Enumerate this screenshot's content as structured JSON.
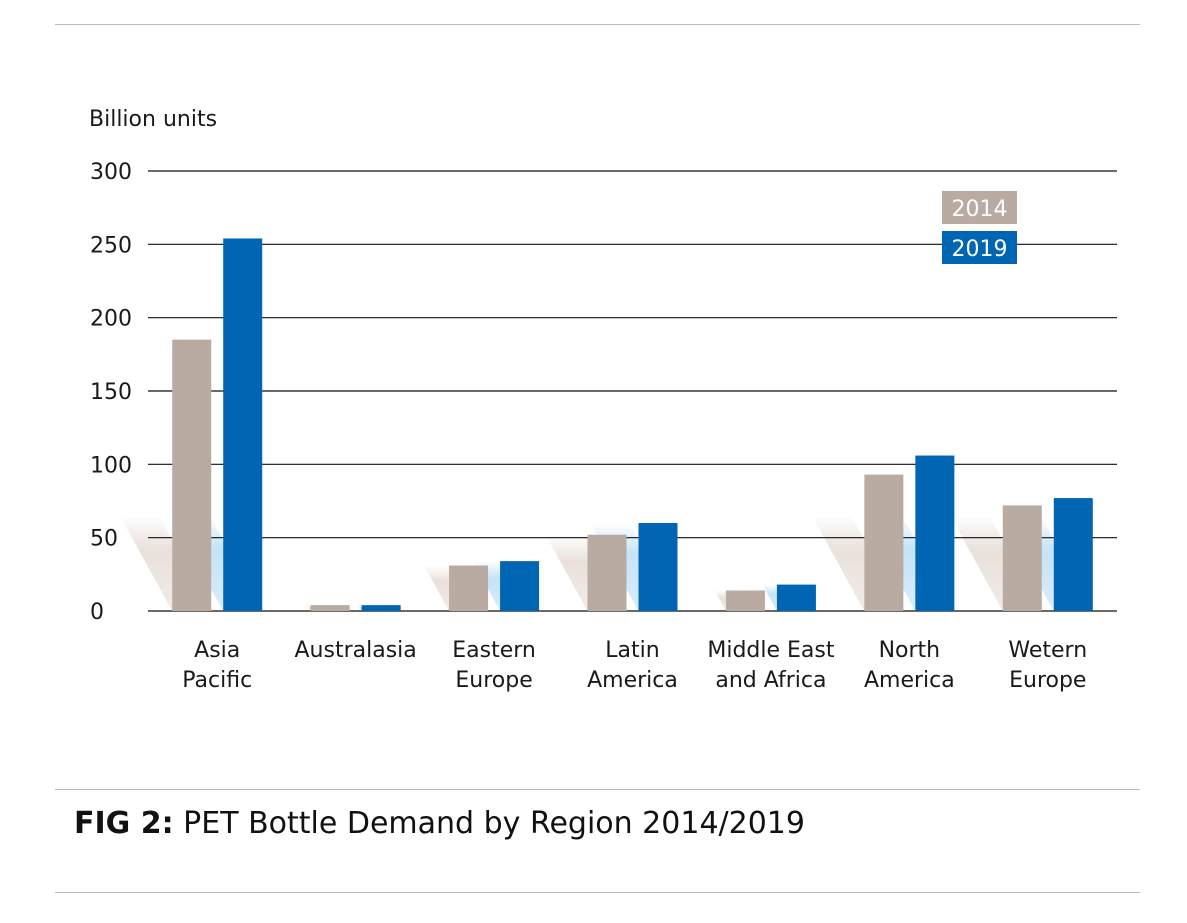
{
  "caption": {
    "figure_label": "FIG 2:",
    "text": "PET Bottle Demand by Region 2014/2019"
  },
  "colors": {
    "series_2014": "#b9aaa2",
    "series_2019": "#0066b3",
    "gridline": "#111111",
    "rule": "#c8b8aa"
  },
  "chart_data": {
    "type": "bar",
    "title": "PET Bottle Demand by Region 2014/2019",
    "ylabel": "Billion units",
    "xlabel": "",
    "ylim": [
      0,
      300
    ],
    "yticks": [
      0,
      50,
      100,
      150,
      200,
      250,
      300
    ],
    "grid": true,
    "legend_position": "top-right",
    "categories": [
      [
        "Asia",
        "Pacific"
      ],
      [
        "Australasia"
      ],
      [
        "Eastern",
        "Europe"
      ],
      [
        "Latin",
        "America"
      ],
      [
        "Middle East",
        "and Africa"
      ],
      [
        "North",
        "America"
      ],
      [
        "Wetern",
        "Europe"
      ]
    ],
    "series": [
      {
        "name": "2014",
        "values": [
          185,
          4,
          31,
          52,
          14,
          93,
          72
        ]
      },
      {
        "name": "2019",
        "values": [
          254,
          4,
          34,
          60,
          18,
          106,
          77
        ]
      }
    ]
  }
}
